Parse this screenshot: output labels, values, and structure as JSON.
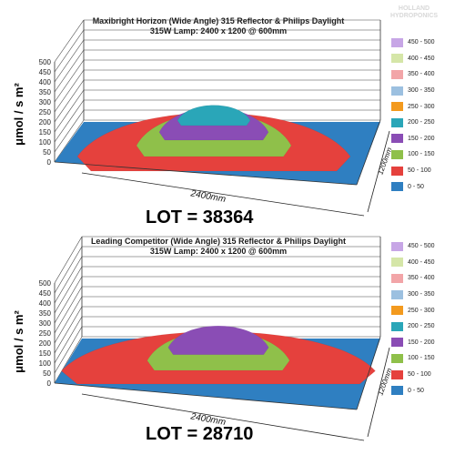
{
  "watermark": "HOLLAND HYDROPONICS",
  "legend_items": [
    {
      "label": "450 - 500",
      "color": "#c7a6e6"
    },
    {
      "label": "400 - 450",
      "color": "#d5e6a8"
    },
    {
      "label": "350 - 400",
      "color": "#f2a5a8"
    },
    {
      "label": "300 - 350",
      "color": "#9cc0e0"
    },
    {
      "label": "250 - 300",
      "color": "#f39a1e"
    },
    {
      "label": "200 - 250",
      "color": "#2aa6b8"
    },
    {
      "label": "150 - 200",
      "color": "#8a4db5"
    },
    {
      "label": "100 - 150",
      "color": "#8fc04a"
    },
    {
      "label": "50 - 100",
      "color": "#e5413d"
    },
    {
      "label": "0 - 50",
      "color": "#2f7fc1"
    }
  ],
  "chart_data": [
    {
      "type": "surface3d",
      "title": "Maxibright Horizon (Wide Angle) 315 Reflector & Philips Daylight 315W Lamp: 2400 x 1200 @ 600mm",
      "ylabel": "μmol / s m²",
      "xlabel": "2400mm",
      "zlabel": "1200mm",
      "ylim": [
        0,
        500
      ],
      "yticks": [
        0,
        50,
        100,
        150,
        200,
        250,
        300,
        350,
        400,
        450,
        500
      ],
      "peak_band": "200 - 250",
      "lot_label": "LOT = 38364",
      "lot": 38364
    },
    {
      "type": "surface3d",
      "title": "Leading Competitor (Wide Angle) 315 Reflector & Philips Daylight 315W Lamp: 2400 x 1200 @ 600mm",
      "ylabel": "μmol / s m²",
      "xlabel": "2400mm",
      "zlabel": "1200mm",
      "ylim": [
        0,
        500
      ],
      "yticks": [
        0,
        50,
        100,
        150,
        200,
        250,
        300,
        350,
        400,
        450,
        500
      ],
      "peak_band": "150 - 200",
      "lot_label": "LOT = 28710",
      "lot": 28710
    }
  ]
}
